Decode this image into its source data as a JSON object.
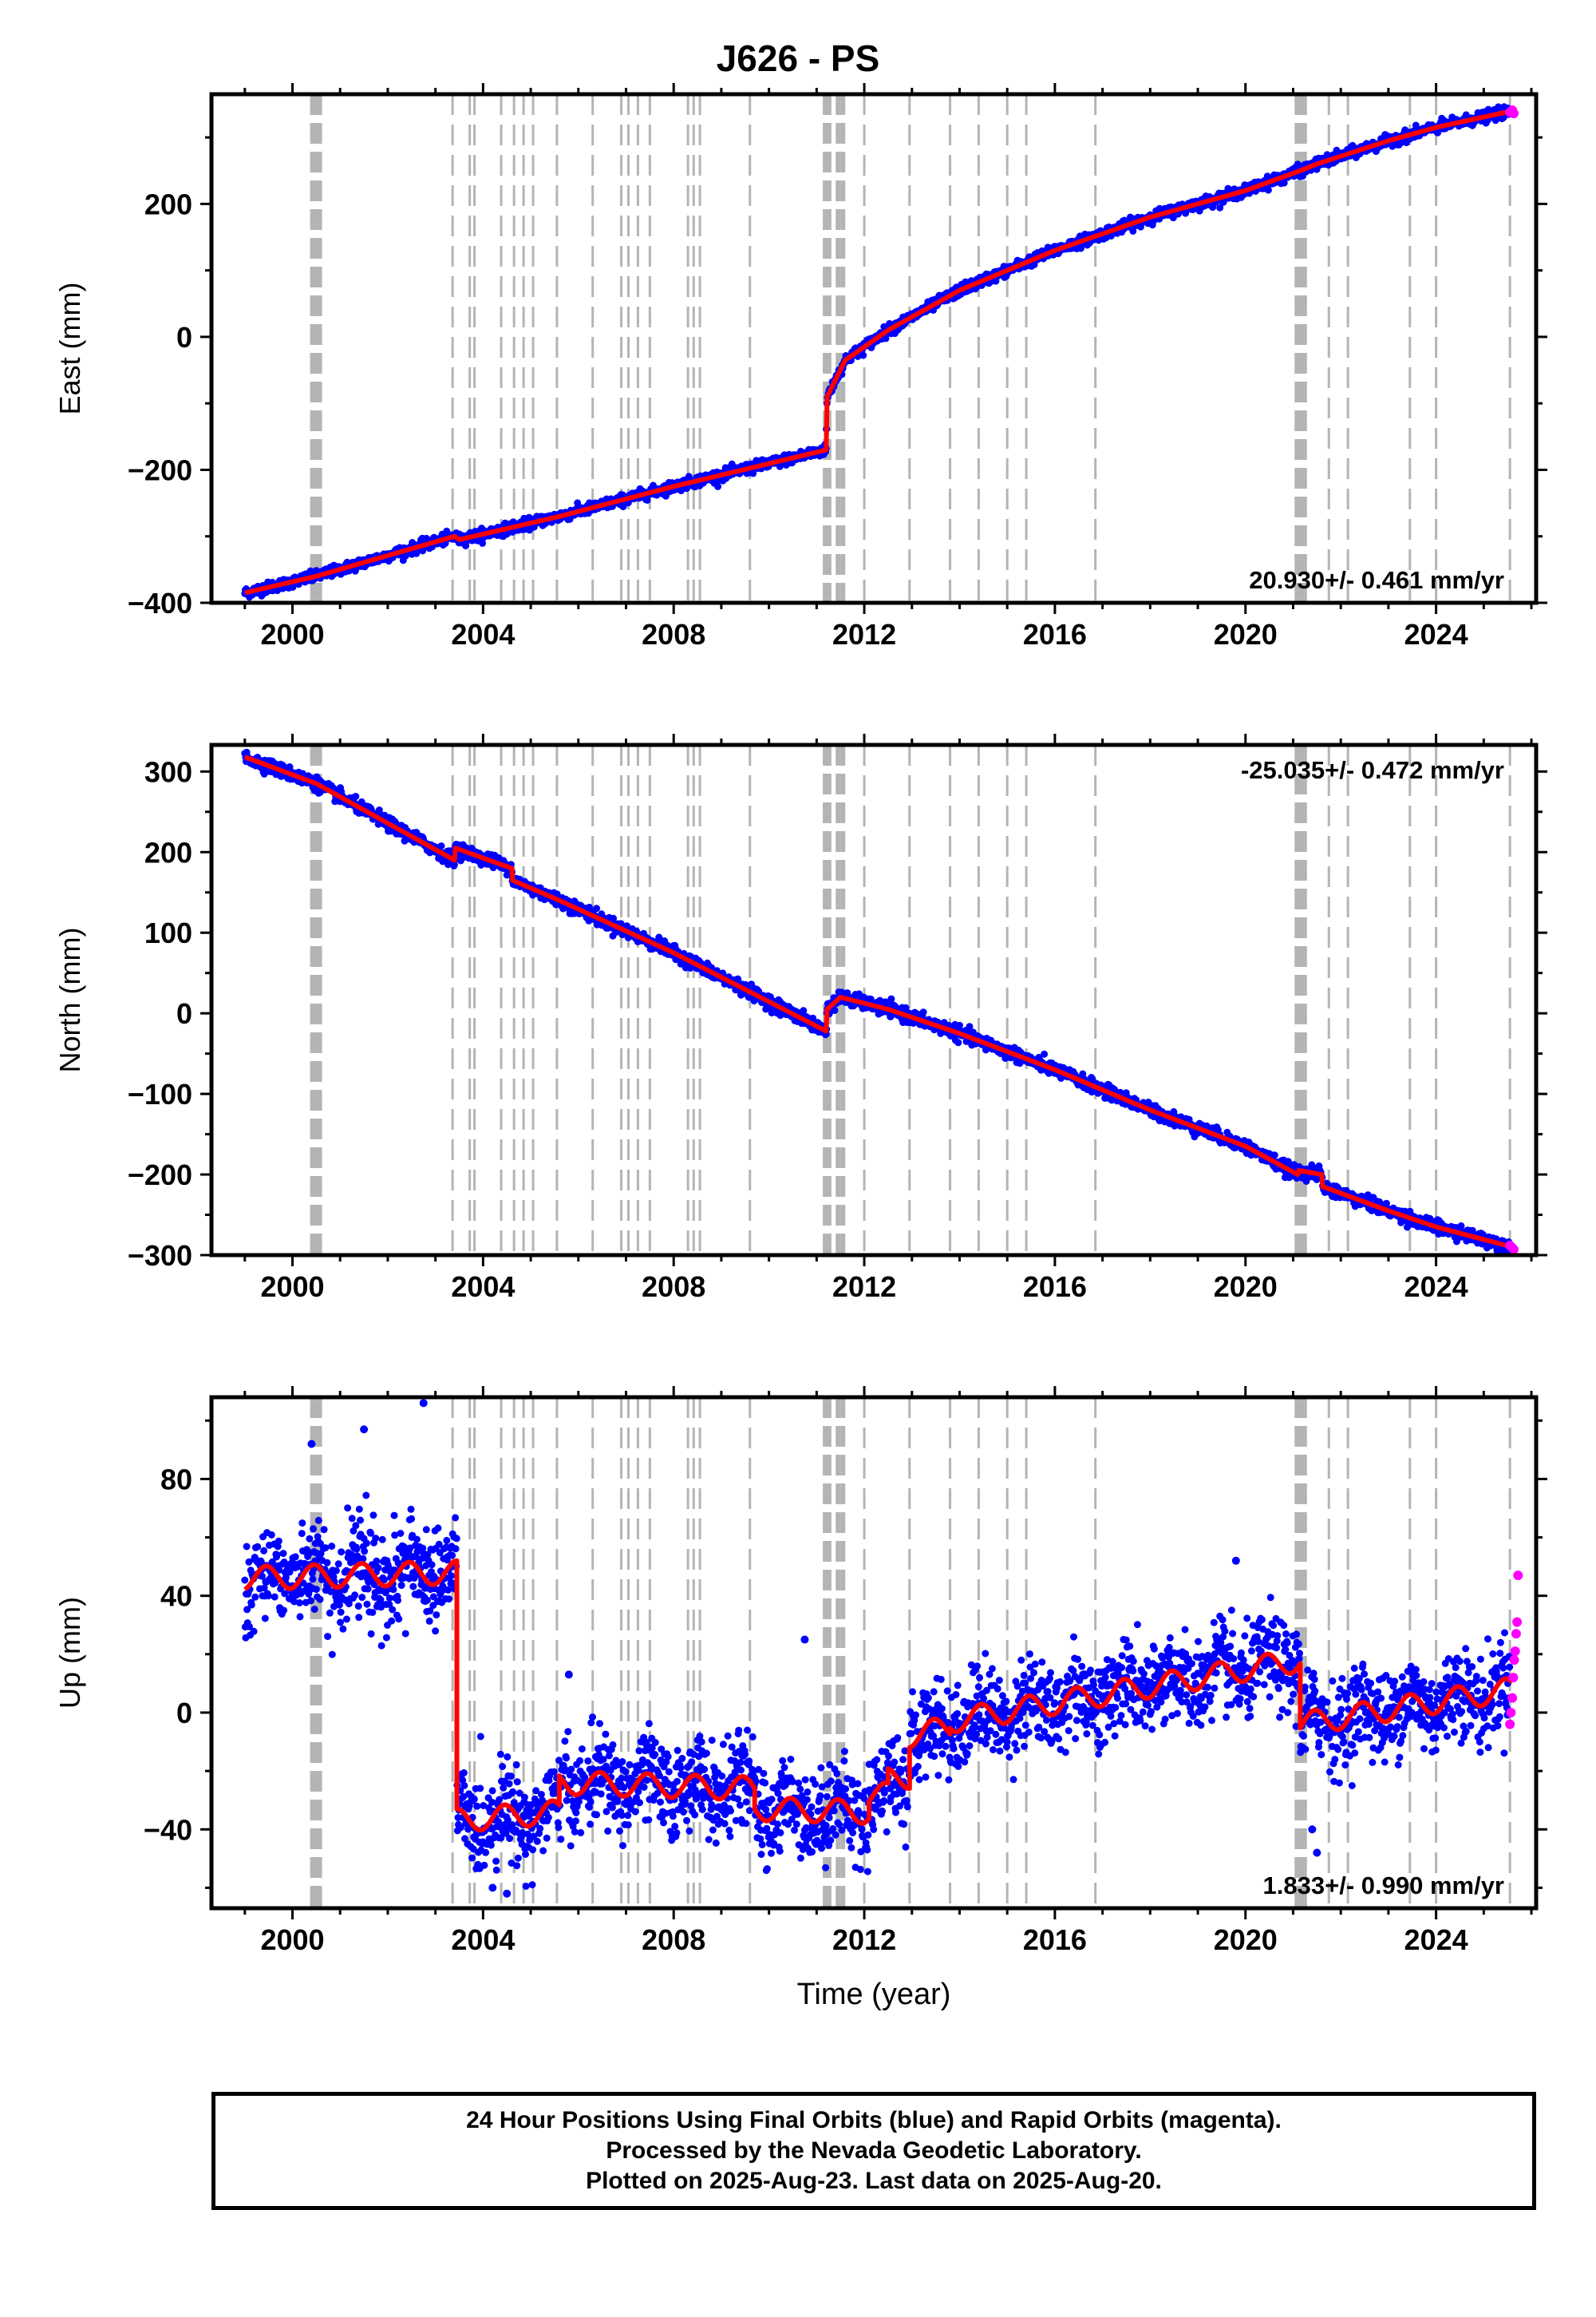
{
  "title": "J626 - PS",
  "colors": {
    "final_orbits": "#0000ff",
    "rapid_orbits": "#ff00ff",
    "model": "#ff0000",
    "event_lines": "#b4b4b4"
  },
  "footer": {
    "line1": "24 Hour Positions Using Final Orbits (blue) and Rapid Orbits (magenta).",
    "line2": "Processed by the Nevada Geodetic Laboratory.",
    "line3": "Plotted on 2025-Aug-23. Last data on 2025-Aug-20."
  },
  "chart_data": [
    {
      "type": "scatter",
      "component": "east",
      "ylabel": "East (mm)",
      "xlabel": "",
      "xlim": [
        1998.3,
        2026.1
      ],
      "ylim": [
        -400,
        365
      ],
      "xticks": [
        2000,
        2004,
        2008,
        2012,
        2016,
        2020,
        2024
      ],
      "yticks": [
        -400,
        -200,
        0,
        200
      ],
      "rate_label": "20.930+/- 0.461 mm/yr",
      "rate_position": "bottom-right",
      "grid": false,
      "model_knots": [
        [
          1999.0,
          -385
        ],
        [
          2000.5,
          -360
        ],
        [
          2003.4,
          -300
        ],
        [
          2003.5,
          -305
        ],
        [
          2005.6,
          -270
        ],
        [
          2008.0,
          -225
        ],
        [
          2011.2,
          -170
        ],
        [
          2011.22,
          -90
        ],
        [
          2011.6,
          -35
        ],
        [
          2012.5,
          10
        ],
        [
          2014.0,
          70
        ],
        [
          2016.0,
          130
        ],
        [
          2018.0,
          180
        ],
        [
          2020.0,
          220
        ],
        [
          2021.15,
          250
        ],
        [
          2021.5,
          260
        ],
        [
          2023.0,
          295
        ],
        [
          2024.0,
          315
        ],
        [
          2025.6,
          340
        ]
      ],
      "series": [
        {
          "name": "Final Orbits (blue)",
          "x": [
            1999.0,
            2000.0,
            2001.0,
            2002.0,
            2003.0,
            2004.0,
            2005.0,
            2006.0,
            2007.0,
            2008.0,
            2009.0,
            2010.0,
            2011.0,
            2011.5,
            2012.0,
            2013.0,
            2014.0,
            2015.0,
            2016.0,
            2017.0,
            2018.0,
            2019.0,
            2020.0,
            2021.0,
            2022.0,
            2023.0,
            2024.0,
            2025.0,
            2025.6
          ],
          "y": [
            -385,
            -368,
            -345,
            -325,
            -308,
            -295,
            -280,
            -262,
            -240,
            -225,
            -205,
            -190,
            -175,
            -45,
            -15,
            35,
            75,
            105,
            130,
            160,
            180,
            200,
            222,
            245,
            270,
            292,
            315,
            325,
            340
          ]
        },
        {
          "name": "Rapid Orbits (magenta)",
          "x": [
            2025.55,
            2025.6,
            2025.63
          ],
          "y": [
            338,
            341,
            336
          ]
        }
      ]
    },
    {
      "type": "scatter",
      "component": "north",
      "ylabel": "North (mm)",
      "xlabel": "",
      "xlim": [
        1998.3,
        2026.1
      ],
      "ylim": [
        -300,
        333
      ],
      "xticks": [
        2000,
        2004,
        2008,
        2012,
        2016,
        2020,
        2024
      ],
      "yticks": [
        -300,
        -200,
        -100,
        0,
        100,
        200,
        300
      ],
      "rate_label": "-25.035+/- 0.472 mm/yr",
      "rate_position": "top-right",
      "grid": false,
      "model_knots": [
        [
          1999.0,
          318
        ],
        [
          2000.5,
          285
        ],
        [
          2003.4,
          190
        ],
        [
          2003.42,
          205
        ],
        [
          2004.6,
          180
        ],
        [
          2004.62,
          165
        ],
        [
          2005.6,
          140
        ],
        [
          2008.0,
          75
        ],
        [
          2011.2,
          -22
        ],
        [
          2011.22,
          5
        ],
        [
          2011.5,
          20
        ],
        [
          2012.5,
          5
        ],
        [
          2014.0,
          -25
        ],
        [
          2016.0,
          -70
        ],
        [
          2018.0,
          -120
        ],
        [
          2020.0,
          -165
        ],
        [
          2021.1,
          -200
        ],
        [
          2021.12,
          -195
        ],
        [
          2021.6,
          -200
        ],
        [
          2021.62,
          -215
        ],
        [
          2023.0,
          -245
        ],
        [
          2024.0,
          -265
        ],
        [
          2025.6,
          -290
        ]
      ],
      "series": [
        {
          "name": "Final Orbits (blue)",
          "x": [
            1999.0,
            2000.0,
            2001.0,
            2002.0,
            2003.0,
            2004.0,
            2005.0,
            2006.0,
            2007.0,
            2008.0,
            2009.0,
            2010.0,
            2011.0,
            2011.5,
            2012.0,
            2013.0,
            2014.0,
            2015.0,
            2016.0,
            2017.0,
            2018.0,
            2019.0,
            2020.0,
            2021.0,
            2022.0,
            2023.0,
            2024.0,
            2025.0,
            2025.6
          ],
          "y": [
            318,
            295,
            265,
            240,
            210,
            190,
            150,
            125,
            100,
            75,
            45,
            15,
            -15,
            20,
            5,
            -10,
            -30,
            -50,
            -70,
            -95,
            -120,
            -140,
            -165,
            -185,
            -220,
            -245,
            -265,
            -280,
            -290
          ]
        },
        {
          "name": "Rapid Orbits (magenta)",
          "x": [
            2025.55,
            2025.6,
            2025.63
          ],
          "y": [
            -288,
            -291,
            -293
          ]
        }
      ]
    },
    {
      "type": "scatter",
      "component": "up",
      "ylabel": "Up (mm)",
      "xlabel": "Time (year)",
      "xlim": [
        1998.3,
        2026.1
      ],
      "ylim": [
        -67,
        108
      ],
      "xticks": [
        2000,
        2004,
        2008,
        2012,
        2016,
        2020,
        2024
      ],
      "yticks": [
        -40,
        0,
        40,
        80
      ],
      "rate_label": "1.833+/- 0.990 mm/yr",
      "rate_position": "bottom-right",
      "grid": false,
      "model_segments": [
        {
          "x0": 1999.0,
          "x1": 2003.45,
          "y0": 46,
          "y1": 48
        },
        {
          "x0": 2003.45,
          "x1": 2005.6,
          "y0": -37,
          "y1": -34
        },
        {
          "x0": 2005.6,
          "x1": 2009.7,
          "y0": -24,
          "y1": -26
        },
        {
          "x0": 2009.7,
          "x1": 2012.1,
          "y0": -33,
          "y1": -34
        },
        {
          "x0": 2012.1,
          "x1": 2012.5,
          "y0": -28,
          "y1": -28
        },
        {
          "x0": 2012.5,
          "x1": 2012.95,
          "y0": -23,
          "y1": -22
        },
        {
          "x0": 2012.95,
          "x1": 2013.8,
          "y0": -8,
          "y1": -5
        },
        {
          "x0": 2013.8,
          "x1": 2021.15,
          "y0": -3,
          "y1": 18
        },
        {
          "x0": 2021.15,
          "x1": 2025.6,
          "y0": -4,
          "y1": 8
        }
      ],
      "annual_amplitude": 4,
      "series": [
        {
          "name": "Final Orbits (blue)",
          "x": [
            1999.5,
            2001.0,
            2002.5,
            2003.0,
            2004.0,
            2005.0,
            2006.5,
            2008.0,
            2009.0,
            2010.5,
            2011.5,
            2012.3,
            2013.5,
            2015.0,
            2016.5,
            2018.0,
            2019.5,
            2020.5,
            2021.5,
            2023.0,
            2024.5,
            2025.5
          ],
          "y": [
            46,
            47,
            48,
            49,
            -37,
            -35,
            -24,
            -25,
            -28,
            -33,
            -34,
            -25,
            -4,
            1,
            5,
            10,
            14,
            18,
            -1,
            2,
            5,
            8
          ]
        },
        {
          "name": "Rapid Orbits (magenta)",
          "x": [
            2025.55,
            2025.57,
            2025.6,
            2025.62,
            2025.64,
            2025.66,
            2025.68,
            2025.7,
            2025.72
          ],
          "y": [
            -4,
            0,
            5,
            12,
            18,
            21,
            27,
            31,
            47
          ]
        }
      ],
      "outliers": [
        [
          2002.75,
          106
        ],
        [
          2004.2,
          -60
        ],
        [
          2004.5,
          -62
        ],
        [
          2005.8,
          13
        ],
        [
          2010.75,
          25
        ],
        [
          2021.4,
          -40
        ],
        [
          2021.5,
          -48
        ],
        [
          2019.8,
          52
        ],
        [
          2000.4,
          92
        ],
        [
          2001.5,
          97
        ]
      ]
    }
  ],
  "event_lines": {
    "thick": [
      2000.42,
      2000.47,
      2000.52,
      2000.57,
      2011.18,
      2011.22,
      2011.26,
      2011.45,
      2011.55,
      2021.08,
      2021.16,
      2021.24
    ],
    "thin": [
      2003.36,
      2003.72,
      2003.82,
      2004.38,
      2004.65,
      2004.85,
      2005.05,
      2005.55,
      2006.3,
      2006.9,
      2007.05,
      2007.25,
      2007.5,
      2008.3,
      2008.42,
      2008.55,
      2009.6,
      2012.0,
      2012.95,
      2013.8,
      2014.4,
      2015.0,
      2015.4,
      2016.85,
      2021.75,
      2022.15,
      2023.45,
      2024.0,
      2025.55
    ]
  }
}
